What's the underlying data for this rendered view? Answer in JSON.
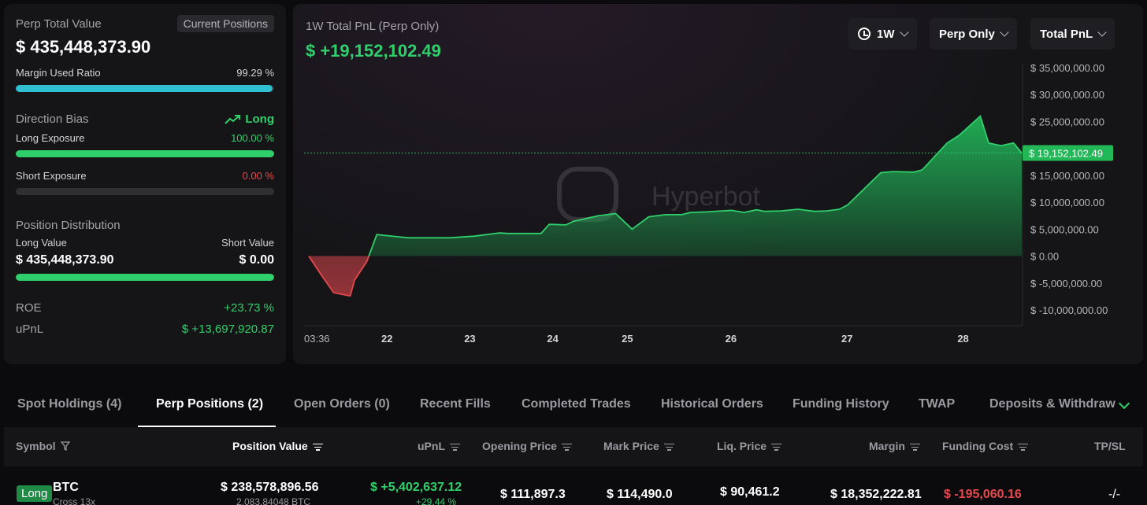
{
  "left": {
    "perp_total_value_label": "Perp Total Value",
    "current_positions_label": "Current Positions",
    "perp_total_value": "$ 435,448,373.90",
    "margin_used_ratio_label": "Margin Used Ratio",
    "margin_used_ratio": "99.29 %",
    "margin_used_fraction": 0.9929,
    "direction_bias_label": "Direction Bias",
    "direction_bias_value": "Long",
    "long_exposure_label": "Long Exposure",
    "long_exposure_value": "100.00 %",
    "long_exposure_fraction": 1.0,
    "short_exposure_label": "Short Exposure",
    "short_exposure_value": "0.00 %",
    "short_exposure_fraction": 0.0,
    "position_distribution_label": "Position Distribution",
    "long_value_label": "Long Value",
    "short_value_label": "Short Value",
    "long_value": "$ 435,448,373.90",
    "short_value": "$ 0.00",
    "roe_label": "ROE",
    "roe_value": "+23.73 %",
    "upnl_label": "uPnL",
    "upnl_value": "$ +13,697,920.87"
  },
  "chart": {
    "title": "1W Total PnL (Perp Only)",
    "value": "$ +19,152,102.49",
    "current_label": "$ 19,152,102.49",
    "watermark": "Hyperbot",
    "dropdowns": {
      "range": "1W",
      "scope": "Perp Only",
      "metric": "Total PnL"
    }
  },
  "chart_data": {
    "type": "area",
    "title": "1W Total PnL (Perp Only)",
    "ylim": [
      -10000000,
      35000000
    ],
    "yticks": [
      "$ 35,000,000.00",
      "$ 30,000,000.00",
      "$ 25,000,000.00",
      "$ 20,000,000.00",
      "$ 15,000,000.00",
      "$ 10,000,000.00",
      "$ 5,000,000.00",
      "$ 0.00",
      "$ -5,000,000.00",
      "$ -10,000,000.00"
    ],
    "ytick_values": [
      35000000,
      30000000,
      25000000,
      20000000,
      15000000,
      10000000,
      5000000,
      0,
      -5000000,
      -10000000
    ],
    "xticks": [
      "03:36",
      "22",
      "23",
      "24",
      "25",
      "26",
      "27",
      "28"
    ],
    "xtick_values": [
      0,
      0.95,
      1.95,
      2.95,
      3.85,
      5.1,
      6.5,
      7.9
    ],
    "current_value": 19152102.49,
    "series": [
      {
        "x": [
          0,
          0.15,
          0.3,
          0.5,
          0.55,
          0.7,
          0.82,
          1.2,
          1.7,
          2.0,
          2.3,
          2.4,
          2.8,
          2.9,
          3.1,
          3.2,
          3.5,
          3.7,
          3.9,
          4.1,
          4.3,
          4.5,
          4.6,
          4.8,
          5.1,
          5.25,
          5.4,
          5.5,
          5.7,
          5.9,
          6.1,
          6.25,
          6.4,
          6.5,
          6.6,
          6.9,
          7.05,
          7.3,
          7.4,
          7.7,
          7.85,
          8.1,
          8.2,
          8.35,
          8.5,
          8.6
        ],
        "y": [
          0,
          -3500000,
          -6800000,
          -7400000,
          -4500000,
          -1000000,
          4000000,
          3400000,
          3400000,
          3700000,
          4300000,
          4200000,
          4200000,
          5900000,
          5800000,
          6500000,
          7500000,
          7900000,
          5000000,
          7300000,
          7700000,
          7700000,
          8100000,
          8200000,
          8500000,
          8100000,
          8600000,
          8300000,
          8400000,
          8700000,
          8300000,
          8400000,
          8700000,
          9500000,
          11000000,
          15500000,
          15700000,
          15600000,
          16000000,
          21000000,
          22500000,
          26000000,
          21000000,
          20500000,
          21000000,
          19152102.49
        ]
      }
    ]
  },
  "tabs": [
    {
      "label": "Spot Holdings (4)"
    },
    {
      "label": "Perp Positions (2)"
    },
    {
      "label": "Open Orders (0)"
    },
    {
      "label": "Recent Fills"
    },
    {
      "label": "Completed Trades"
    },
    {
      "label": "Historical Orders"
    },
    {
      "label": "Funding History"
    },
    {
      "label": "TWAP"
    },
    {
      "label": "Deposits & Withdraw"
    }
  ],
  "table": {
    "headers": {
      "symbol": "Symbol",
      "position_value": "Position Value",
      "upnl": "uPnL",
      "opening_price": "Opening Price",
      "mark_price": "Mark Price",
      "liq_price": "Liq. Price",
      "margin": "Margin",
      "funding_cost": "Funding Cost",
      "tpsl": "TP/SL"
    },
    "rows": [
      {
        "side": "Long",
        "symbol": "BTC",
        "leverage": "Cross 13x",
        "position_value": "$ 238,578,896.56",
        "position_size": "2,083.84048 BTC",
        "upnl": "$ +5,402,637.12",
        "upnl_pct": "+29.44 %",
        "opening_price": "$ 111,897.3",
        "mark_price": "$ 114,490.0",
        "liq_price": "$ 90,461.2",
        "margin": "$ 18,352,222.81",
        "funding_cost": "$ -195,060.16",
        "tpsl": "-/-"
      }
    ]
  },
  "colors": {
    "green": "#2fd06b",
    "red": "#e5484d",
    "cyan": "#2fbfd0",
    "bg": "#0b0b0d",
    "panel": "#151518"
  }
}
